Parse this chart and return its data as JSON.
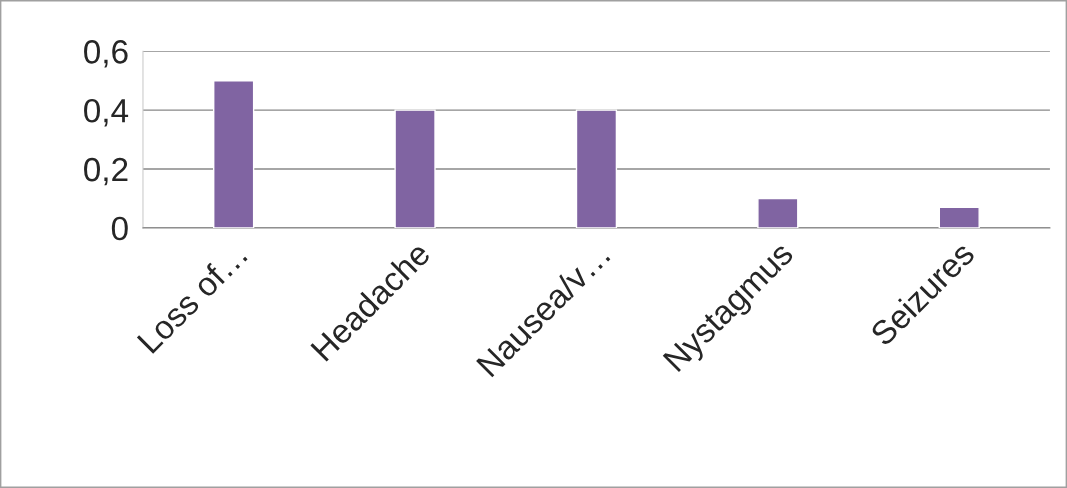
{
  "chart_data": {
    "type": "bar",
    "categories": [
      "Loss of…",
      "Headache",
      "Nausea/v…",
      "Nystagmus",
      "Seizures"
    ],
    "values": [
      0.5,
      0.4,
      0.4,
      0.1,
      0.07
    ],
    "color": "#8064a2",
    "ylim": [
      0,
      0.6
    ],
    "yticks": [
      0,
      {
        "value": 0.2,
        "label": "0,2"
      },
      {
        "value": 0.4,
        "label": "0,4"
      },
      {
        "value": 0.6,
        "label": "0,6"
      }
    ],
    "grid": "y",
    "legend": false
  }
}
